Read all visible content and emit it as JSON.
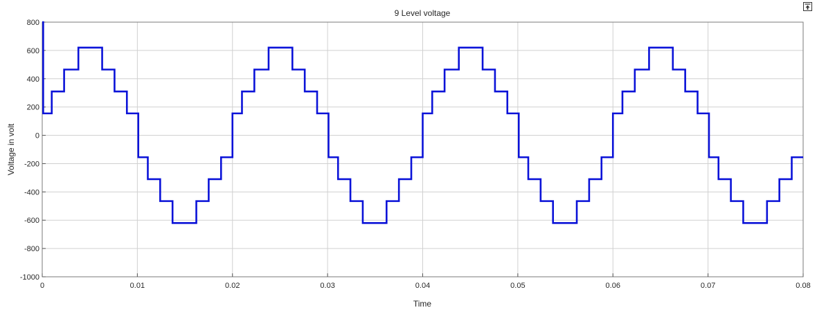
{
  "chart_data": {
    "type": "line",
    "title": "9 Level voltage",
    "xlabel": "Time",
    "ylabel": "Voltage in volt",
    "xlim": [
      0,
      0.08
    ],
    "ylim": [
      -1000,
      800
    ],
    "xticks": [
      "0",
      "0.01",
      "0.02",
      "0.03",
      "0.04",
      "0.05",
      "0.06",
      "0.07",
      "0.08"
    ],
    "xtick_values": [
      0,
      0.01,
      0.02,
      0.03,
      0.04,
      0.05,
      0.06,
      0.07,
      0.08
    ],
    "yticks": [
      "800",
      "600",
      "400",
      "200",
      "0",
      "-200",
      "-400",
      "-600",
      "-800",
      "-1000"
    ],
    "ytick_values": [
      800,
      600,
      400,
      200,
      0,
      -200,
      -400,
      -600,
      -800,
      -1000
    ],
    "grid": true,
    "line_color": "#0a12d8",
    "series": [
      {
        "step": "post",
        "x": [
          0,
          0.0001,
          0.001,
          0.0023,
          0.0038,
          0.0063,
          0.0076,
          0.0089,
          0.0101,
          0.0111,
          0.0124,
          0.0137,
          0.0162,
          0.0175,
          0.0188,
          0.02,
          0.021,
          0.0223,
          0.0238,
          0.0263,
          0.0276,
          0.0289,
          0.0301,
          0.0311,
          0.0324,
          0.0337,
          0.0362,
          0.0375,
          0.0388,
          0.04,
          0.041,
          0.0423,
          0.0438,
          0.0463,
          0.0476,
          0.0489,
          0.0501,
          0.0511,
          0.0524,
          0.0537,
          0.0562,
          0.0575,
          0.0588,
          0.06,
          0.061,
          0.0623,
          0.0638,
          0.0663,
          0.0676,
          0.0689,
          0.0701,
          0.0711,
          0.0724,
          0.0737,
          0.0762,
          0.0775,
          0.0788,
          0.08
        ],
        "y": [
          800,
          155,
          310,
          465,
          620,
          465,
          310,
          155,
          -155,
          -310,
          -465,
          -620,
          -465,
          -310,
          -155,
          155,
          310,
          465,
          620,
          465,
          310,
          155,
          -155,
          -310,
          -465,
          -620,
          -465,
          -310,
          -155,
          155,
          310,
          465,
          620,
          465,
          310,
          155,
          -155,
          -310,
          -465,
          -620,
          -465,
          -310,
          -155,
          155,
          310,
          465,
          620,
          465,
          310,
          155,
          -155,
          -310,
          -465,
          -620,
          -465,
          -310,
          -155,
          -155
        ]
      }
    ]
  },
  "toolbar": {
    "undock_icon": "undock-icon"
  }
}
